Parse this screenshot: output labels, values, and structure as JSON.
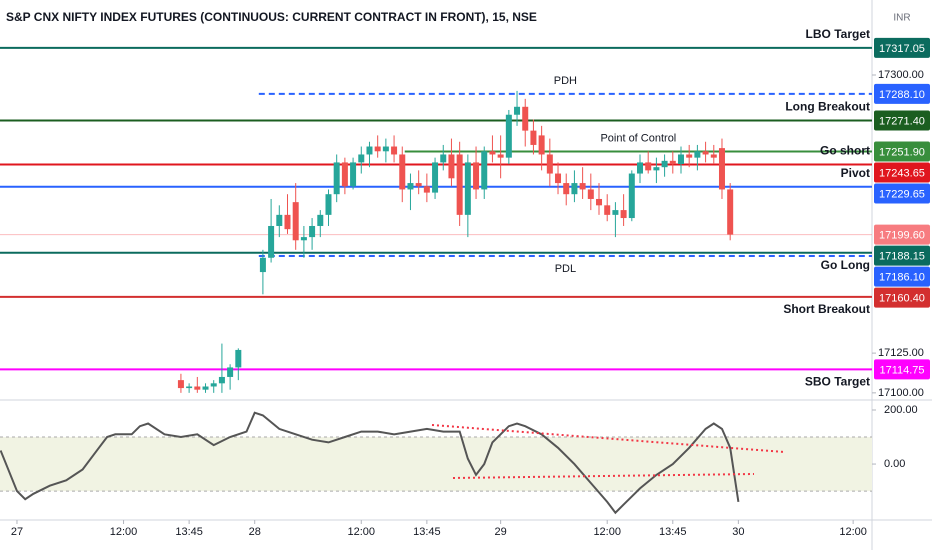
{
  "header": {
    "title": "S&P CNX NIFTY INDEX FUTURES (CONTINUOUS: CURRENT CONTRACT IN FRONT), 15, NSE",
    "currency": "INR"
  },
  "chart_data": [
    {
      "type": "candlestick",
      "up_color": "#26a69a",
      "down_color": "#ef5350",
      "xlim": [
        -2.07,
        104.3
      ],
      "ylim": [
        17095.5,
        17347.2
      ],
      "xticks": [
        {
          "value": 0,
          "label": "27"
        },
        {
          "value": 13,
          "label": "12:00"
        },
        {
          "value": 21,
          "label": "13:45"
        },
        {
          "value": 29,
          "label": "28"
        },
        {
          "value": 42,
          "label": "12:00"
        },
        {
          "value": 50,
          "label": "13:45"
        },
        {
          "value": 59,
          "label": "29"
        },
        {
          "value": 72,
          "label": "12:00"
        },
        {
          "value": 80,
          "label": "13:45"
        },
        {
          "value": 88,
          "label": "30"
        },
        {
          "value": 102,
          "label": "12:00"
        }
      ],
      "yticks": [
        {
          "value": 17100,
          "label": "17100.00"
        },
        {
          "value": 17125,
          "label": "17125.00"
        },
        {
          "value": 17300,
          "label": "17300.00"
        }
      ],
      "x": [
        20,
        21,
        22,
        23,
        24,
        25,
        26,
        27,
        30,
        31,
        32,
        33,
        34,
        35,
        36,
        37,
        38,
        39,
        40,
        41,
        42,
        43,
        44,
        45,
        46,
        47,
        48,
        49,
        50,
        51,
        52,
        53,
        54,
        55,
        56,
        57,
        58,
        59,
        60,
        61,
        62,
        63,
        64,
        65,
        66,
        67,
        68,
        69,
        70,
        71,
        72,
        73,
        74,
        75,
        76,
        77,
        78,
        79,
        80,
        81,
        82,
        83,
        84,
        85,
        86,
        87
      ],
      "open": [
        17108,
        17103,
        17104,
        17102,
        17104,
        17106,
        17110,
        17116,
        17176,
        17185,
        17205,
        17212,
        17220,
        17196,
        17198,
        17205,
        17212,
        17225,
        17245,
        17230,
        17245,
        17250,
        17255,
        17252,
        17255,
        17250,
        17228,
        17232,
        17230,
        17226,
        17245,
        17250,
        17250,
        17212,
        17245,
        17228,
        17252,
        17250,
        17248,
        17275,
        17280,
        17265,
        17262,
        17250,
        17238,
        17232,
        17225,
        17232,
        17228,
        17222,
        17218,
        17212,
        17215,
        17210,
        17238,
        17245,
        17240,
        17242,
        17246,
        17244,
        17250,
        17248,
        17252,
        17250,
        17254,
        17228
      ],
      "high": [
        17112,
        17106,
        17110,
        17106,
        17108,
        17131,
        17118,
        17128,
        17190,
        17222,
        17218,
        17225,
        17232,
        17205,
        17210,
        17215,
        17228,
        17250,
        17248,
        17248,
        17255,
        17258,
        17262,
        17260,
        17262,
        17255,
        17238,
        17240,
        17238,
        17248,
        17256,
        17260,
        17258,
        17250,
        17255,
        17255,
        17262,
        17262,
        17278,
        17290,
        17285,
        17272,
        17268,
        17260,
        17245,
        17238,
        17240,
        17242,
        17238,
        17232,
        17225,
        17220,
        17225,
        17240,
        17250,
        17252,
        17248,
        17250,
        17252,
        17255,
        17256,
        17256,
        17258,
        17256,
        17260,
        17232
      ],
      "low": [
        17100,
        17100,
        17100,
        17100,
        17100,
        17100,
        17102,
        17108,
        17162,
        17182,
        17198,
        17200,
        17190,
        17185,
        17190,
        17198,
        17205,
        17220,
        17225,
        17228,
        17238,
        17242,
        17248,
        17245,
        17245,
        17220,
        17215,
        17225,
        17220,
        17222,
        17240,
        17230,
        17205,
        17198,
        17222,
        17222,
        17245,
        17235,
        17244,
        17268,
        17255,
        17250,
        17240,
        17230,
        17225,
        17218,
        17220,
        17222,
        17215,
        17212,
        17208,
        17198,
        17205,
        17208,
        17232,
        17238,
        17232,
        17236,
        17238,
        17238,
        17242,
        17240,
        17245,
        17244,
        17222,
        17196
      ],
      "close": [
        17103,
        17104,
        17102,
        17104,
        17106,
        17110,
        17116,
        17127,
        17185,
        17205,
        17212,
        17203,
        17196,
        17198,
        17205,
        17212,
        17225,
        17245,
        17230,
        17245,
        17250,
        17255,
        17252,
        17255,
        17250,
        17228,
        17232,
        17230,
        17226,
        17245,
        17250,
        17235,
        17212,
        17245,
        17228,
        17252,
        17250,
        17248,
        17275,
        17280,
        17265,
        17256,
        17250,
        17238,
        17232,
        17225,
        17232,
        17228,
        17222,
        17218,
        17212,
        17215,
        17210,
        17238,
        17245,
        17240,
        17242,
        17246,
        17244,
        17250,
        17248,
        17252,
        17250,
        17248,
        17228,
        17199.6
      ],
      "levels": [
        {
          "name": "LBO Target",
          "value": 17317.05,
          "value_label": "17317.05",
          "color": "#0b6b5e",
          "style": "solid",
          "label_pos": "above",
          "label_align": "right"
        },
        {
          "name": "PDH",
          "value": 17288.1,
          "value_label": "17288.10",
          "color": "#2962ff",
          "style": "dashed",
          "from": 29.5,
          "label_pos": "above",
          "label_align": "center"
        },
        {
          "name": "Long Breakout",
          "value": 17271.4,
          "value_label": "17271.40",
          "color": "#1b5e20",
          "style": "solid",
          "label_pos": "above",
          "label_align": "right"
        },
        {
          "name": "Point of Control",
          "value": 17251.9,
          "value_label": "17251.90",
          "color": "#388e3c",
          "style": "solid",
          "from": 47.3,
          "label_pos": "above",
          "label_align": "center"
        },
        {
          "name": "Go short",
          "value": 17243.65,
          "value_label": "17243.65",
          "color": "#e0161e",
          "style": "solid",
          "label_pos": "above",
          "label_align": "right"
        },
        {
          "name": "Pivot",
          "value": 17229.65,
          "value_label": "17229.65",
          "color": "#2962ff",
          "style": "solid",
          "label_pos": "above",
          "label_align": "right"
        },
        {
          "value": 17199.6,
          "value_label": "17199.60",
          "color": "#f77c80",
          "style": "thin"
        },
        {
          "name": "Go Long",
          "value": 17188.15,
          "value_label": "17188.15",
          "color": "#0b6b5e",
          "style": "solid",
          "label_pos": "below",
          "label_align": "right"
        },
        {
          "name": "PDL",
          "value": 17186.1,
          "value_label": "17186.10",
          "color": "#2962ff",
          "style": "dashed",
          "from": 29.5,
          "label_pos": "below",
          "label_align": "center"
        },
        {
          "name": "Short Breakout",
          "value": 17160.4,
          "value_label": "17160.40",
          "color": "#d32f2f",
          "style": "solid",
          "label_pos": "below",
          "label_align": "right"
        },
        {
          "name": "SBO Target",
          "value": 17114.75,
          "value_label": "17114.75",
          "color": "#ff00ff",
          "style": "solid",
          "label_pos": "below",
          "label_align": "right"
        }
      ]
    },
    {
      "type": "line",
      "color": "#555555",
      "xlim": [
        -2.07,
        104.3
      ],
      "ylim": [
        -207,
        237
      ],
      "band": [
        -100,
        100
      ],
      "yticks": [
        {
          "value": 0,
          "label": "0.00"
        },
        {
          "value": 200,
          "label": "200.00"
        }
      ],
      "x": [
        -2,
        0,
        1,
        2,
        4,
        6,
        8,
        10,
        11,
        12,
        14,
        15,
        16,
        18,
        20,
        22,
        24,
        26,
        28,
        29,
        30,
        32,
        34,
        36,
        38,
        40,
        42,
        44,
        46,
        48,
        50,
        52,
        54,
        55,
        56,
        57,
        58,
        60,
        61,
        62,
        64,
        66,
        68,
        70,
        72,
        73,
        74,
        76,
        78,
        80,
        82,
        84,
        85,
        86,
        87,
        88
      ],
      "values": [
        50,
        -100,
        -130,
        -110,
        -80,
        -60,
        -20,
        60,
        100,
        110,
        110,
        140,
        150,
        110,
        100,
        110,
        70,
        100,
        120,
        190,
        180,
        130,
        110,
        90,
        80,
        100,
        120,
        120,
        110,
        120,
        130,
        120,
        120,
        20,
        -40,
        0,
        80,
        140,
        150,
        140,
        110,
        60,
        0,
        -70,
        -140,
        -180,
        -150,
        -90,
        -40,
        0,
        60,
        130,
        150,
        130,
        60,
        -140
      ]
    }
  ]
}
